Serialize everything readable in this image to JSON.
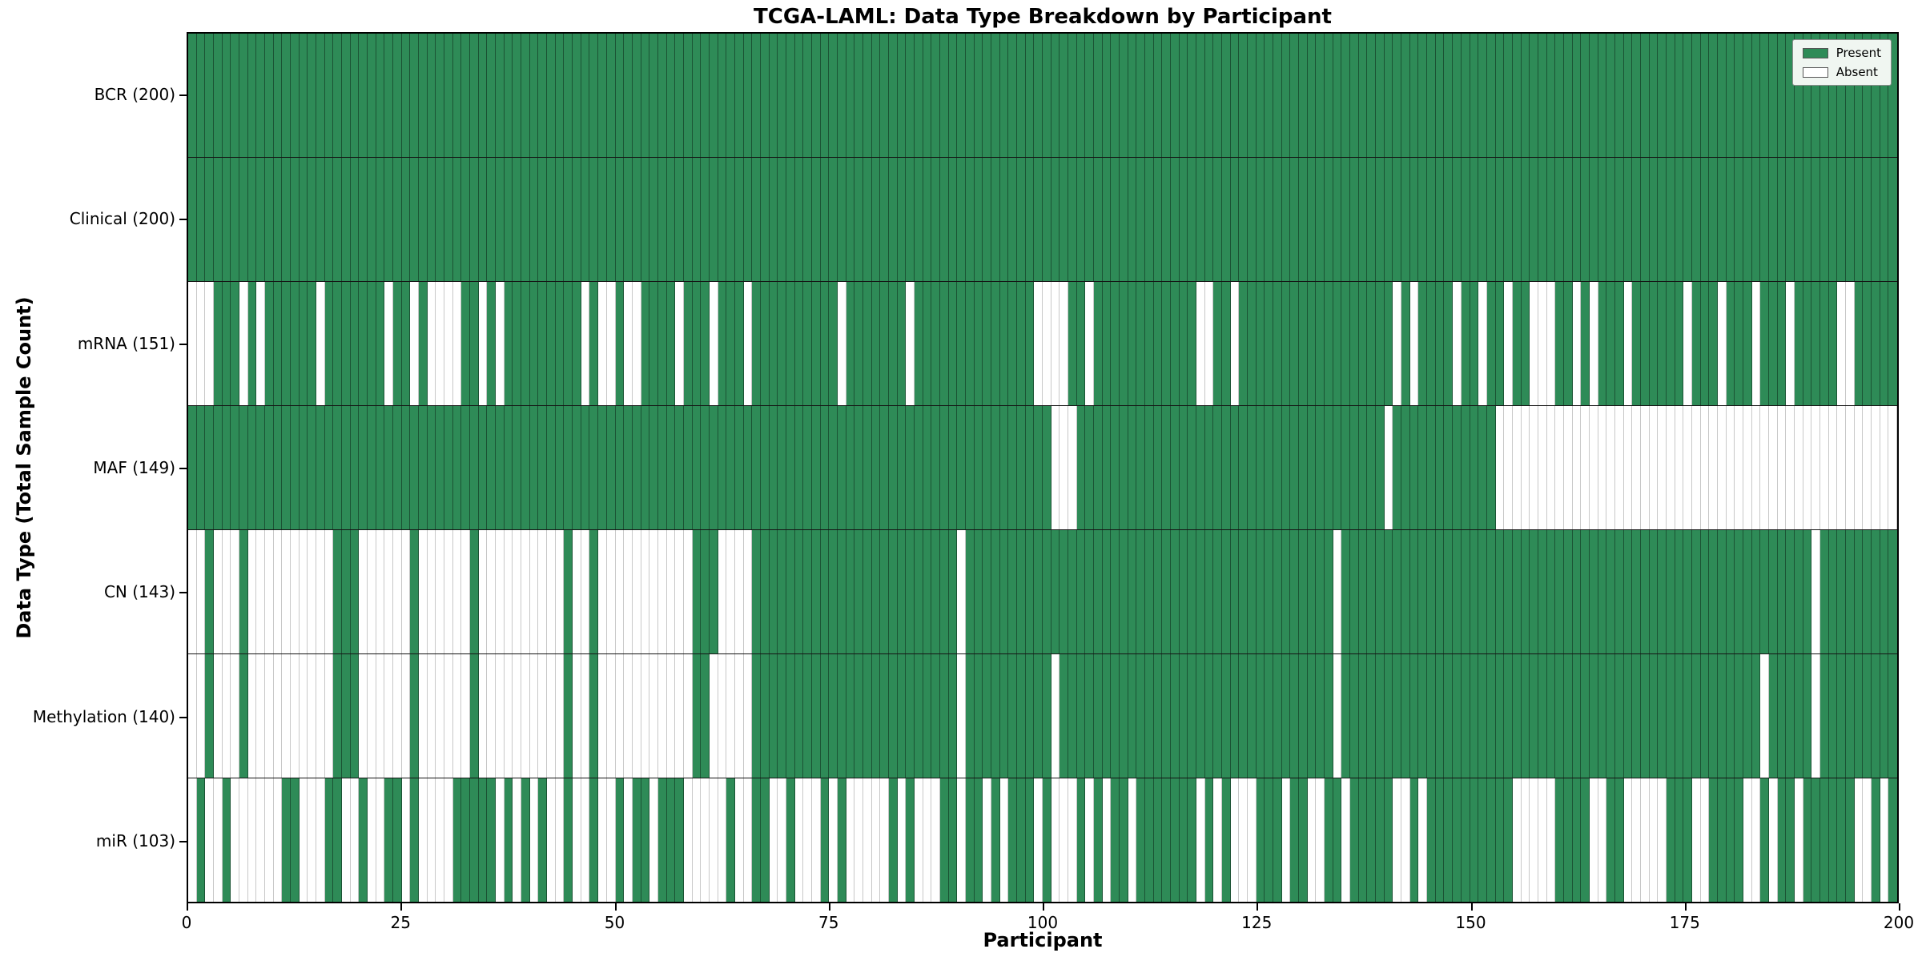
{
  "title": "TCGA-LAML: Data Type Breakdown by Participant",
  "xlabel": "Participant",
  "ylabel": "Data Type (Total Sample Count)",
  "n_participants": 200,
  "x_ticks": [
    0,
    25,
    50,
    75,
    100,
    125,
    150,
    175,
    200
  ],
  "legend": {
    "present_label": "Present",
    "absent_label": "Absent"
  },
  "colors": {
    "present": "#2e8b57",
    "absent": "#ffffff",
    "grid_on_present": "rgba(0,0,0,0.40)",
    "grid_on_absent": "#c8c8c8",
    "legend_bg": "#f0f6f1"
  },
  "chart_data": {
    "type": "heatmap",
    "x_range": [
      0,
      200
    ],
    "legend_position": "upper right",
    "cell_values": "1=present(green), 0=absent(white)",
    "rows": [
      {
        "label": "BCR (200)",
        "name": "BCR",
        "total_present": 200,
        "absent_columns": []
      },
      {
        "label": "Clinical (200)",
        "name": "Clinical",
        "total_present": 200,
        "absent_columns": []
      },
      {
        "label": "mRNA (151)",
        "name": "mRNA",
        "total_present": 151,
        "absent_columns": [
          0,
          1,
          2,
          6,
          8,
          15,
          23,
          26,
          28,
          29,
          30,
          31,
          34,
          36,
          46,
          48,
          49,
          51,
          52,
          57,
          61,
          65,
          76,
          84,
          99,
          100,
          101,
          102,
          105,
          118,
          119,
          122,
          141,
          143,
          148,
          151,
          154,
          157,
          158,
          159,
          162,
          164,
          168,
          175,
          179,
          183,
          187,
          193,
          194
        ]
      },
      {
        "label": "MAF (149)",
        "name": "MAF",
        "total_present": 149,
        "absent_columns": [
          101,
          102,
          103,
          140,
          153,
          154,
          155,
          156,
          157,
          158,
          159,
          160,
          161,
          162,
          163,
          164,
          165,
          166,
          167,
          168,
          169,
          170,
          171,
          172,
          173,
          174,
          175,
          176,
          177,
          178,
          179,
          180,
          181,
          182,
          183,
          184,
          185,
          186,
          187,
          188,
          189,
          190,
          191,
          192,
          193,
          194,
          195,
          196,
          197,
          198,
          199
        ]
      },
      {
        "label": "CN (143)",
        "name": "CN",
        "total_present": 143,
        "absent_columns": [
          0,
          1,
          3,
          4,
          5,
          7,
          8,
          9,
          10,
          11,
          12,
          13,
          14,
          15,
          16,
          20,
          21,
          22,
          23,
          24,
          25,
          27,
          28,
          29,
          30,
          31,
          32,
          34,
          35,
          36,
          37,
          38,
          39,
          40,
          41,
          42,
          43,
          45,
          46,
          48,
          49,
          50,
          51,
          52,
          53,
          54,
          55,
          56,
          57,
          58,
          62,
          63,
          64,
          65,
          90,
          134,
          190
        ]
      },
      {
        "label": "Methylation (140)",
        "name": "Methylation",
        "total_present": 140,
        "absent_columns": [
          0,
          1,
          3,
          4,
          5,
          7,
          8,
          9,
          10,
          11,
          12,
          13,
          14,
          15,
          16,
          20,
          21,
          22,
          23,
          24,
          25,
          27,
          28,
          29,
          30,
          31,
          32,
          34,
          35,
          36,
          37,
          38,
          39,
          40,
          41,
          42,
          43,
          45,
          46,
          48,
          49,
          50,
          51,
          52,
          53,
          54,
          55,
          56,
          57,
          58,
          61,
          62,
          63,
          64,
          65,
          90,
          101,
          134,
          184,
          190
        ]
      },
      {
        "label": "miR (103)",
        "name": "miR",
        "total_present": 103,
        "absent_columns": [
          0,
          2,
          3,
          5,
          6,
          7,
          8,
          9,
          10,
          13,
          14,
          15,
          18,
          19,
          21,
          22,
          25,
          27,
          28,
          29,
          30,
          36,
          38,
          40,
          42,
          43,
          45,
          46,
          48,
          49,
          51,
          54,
          58,
          59,
          60,
          61,
          62,
          64,
          65,
          68,
          69,
          71,
          72,
          73,
          75,
          77,
          78,
          79,
          80,
          81,
          83,
          85,
          86,
          87,
          90,
          93,
          95,
          99,
          101,
          102,
          103,
          105,
          107,
          110,
          118,
          120,
          122,
          123,
          124,
          128,
          131,
          132,
          135,
          141,
          142,
          144,
          155,
          156,
          157,
          158,
          159,
          164,
          165,
          168,
          169,
          170,
          171,
          172,
          176,
          177,
          182,
          183,
          185,
          188,
          195,
          196,
          198
        ]
      }
    ]
  }
}
